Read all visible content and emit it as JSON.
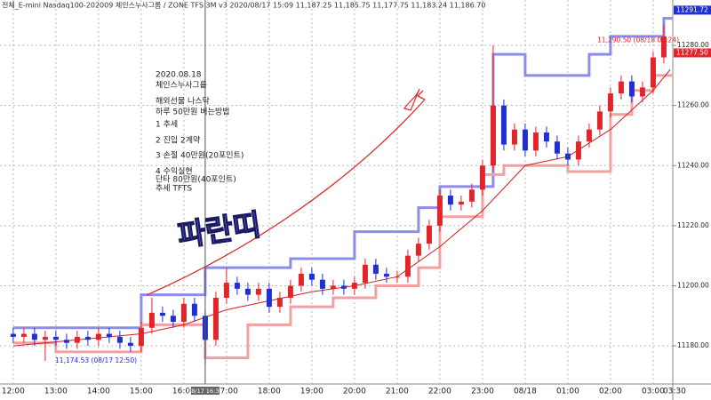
{
  "chart_data": {
    "type": "candlestick",
    "title": "전체_E-mini Nasdaq100-202009 체인스누사그룹 / ZONE TFS 3M v3  2020/08/17 15:09  11,187.25  11,185.75  11,177.75  11,183.24  11,186.70",
    "x": [
      12,
      12.25,
      12.5,
      12.75,
      13,
      13.25,
      13.5,
      13.75,
      14,
      14.25,
      14.5,
      14.75,
      15,
      15.25,
      15.5,
      15.75,
      16,
      16.25,
      16.5,
      16.75,
      17,
      17.25,
      17.5,
      17.75,
      18,
      18.25,
      18.5,
      18.75,
      19,
      19.25,
      19.5,
      19.75,
      20,
      20.25,
      20.5,
      20.75,
      21,
      21.25,
      21.5,
      21.75,
      22,
      22.25,
      22.5,
      22.75,
      23,
      23.25,
      23.5,
      23.75,
      24,
      24.25,
      24.5,
      24.75,
      25,
      25.25,
      25.5,
      25.75,
      26,
      26.25,
      26.5,
      26.75,
      27,
      27.25
    ],
    "open": [
      11184,
      11183,
      11184,
      11182,
      11183,
      11182,
      11181,
      11183,
      11182,
      11184,
      11183,
      11181,
      11180,
      11186,
      11191,
      11190,
      11188,
      11194,
      11190,
      11182,
      11196,
      11201,
      11199,
      11197,
      11199,
      11193,
      11196,
      11200,
      11204,
      11202,
      11199,
      11200,
      11199,
      11201,
      11207,
      11204,
      11203,
      11203,
      11210,
      11214,
      11220,
      11230,
      11227,
      11228,
      11232,
      11240,
      11260,
      11247,
      11252,
      11245,
      11251,
      11248,
      11244,
      11242,
      11248,
      11252,
      11258,
      11264,
      11268,
      11263,
      11266,
      11276
    ],
    "high": [
      11186,
      11186,
      11186,
      11185,
      11185,
      11184,
      11185,
      11185,
      11186,
      11186,
      11185,
      11183,
      11188,
      11196,
      11193,
      11192,
      11196,
      11196,
      11192,
      11198,
      11206,
      11203,
      11201,
      11201,
      11201,
      11198,
      11202,
      11206,
      11206,
      11204,
      11202,
      11202,
      11203,
      11209,
      11209,
      11206,
      11205,
      11212,
      11216,
      11222,
      11232,
      11232,
      11230,
      11234,
      11242,
      11280,
      11262,
      11254,
      11254,
      11253,
      11253,
      11250,
      11246,
      11250,
      11254,
      11260,
      11266,
      11270,
      11270,
      11268,
      11278,
      11287
    ],
    "low": [
      11181,
      11181,
      11180,
      11175,
      11180,
      11179,
      11179,
      11180,
      11180,
      11181,
      11179,
      11178,
      11178,
      11184,
      11188,
      11186,
      11186,
      11188,
      11174,
      11180,
      11194,
      11197,
      11195,
      11195,
      11191,
      11191,
      11194,
      11198,
      11200,
      11197,
      11197,
      11197,
      11197,
      11199,
      11202,
      11201,
      11201,
      11201,
      11208,
      11212,
      11218,
      11225,
      11225,
      11226,
      11230,
      11238,
      11245,
      11245,
      11243,
      11243,
      11246,
      11242,
      11240,
      11240,
      11246,
      11250,
      11256,
      11262,
      11261,
      11261,
      11264,
      11274
    ],
    "close": [
      11183,
      11184,
      11182,
      11183,
      11182,
      11181,
      11183,
      11182,
      11184,
      11183,
      11181,
      11180,
      11186,
      11191,
      11190,
      11188,
      11194,
      11190,
      11182,
      11196,
      11201,
      11199,
      11197,
      11199,
      11193,
      11196,
      11200,
      11204,
      11202,
      11199,
      11200,
      11199,
      11201,
      11207,
      11204,
      11203,
      11203,
      11210,
      11214,
      11220,
      11230,
      11227,
      11228,
      11232,
      11240,
      11260,
      11247,
      11252,
      11245,
      11251,
      11248,
      11244,
      11242,
      11248,
      11252,
      11258,
      11264,
      11268,
      11263,
      11266,
      11276,
      11283
    ],
    "up_color": "#e0262a",
    "down_color": "#1f2fd0",
    "upper_band": {
      "color": "#8c8cf0",
      "x": [
        12,
        15,
        16.5,
        18.5,
        20,
        21.5,
        22,
        23.25,
        24,
        25.5,
        26,
        27.25
      ],
      "values": [
        11186,
        11197,
        11206,
        11209,
        11218,
        11226,
        11233,
        11277,
        11270,
        11277,
        11283,
        11289
      ]
    },
    "lower_band": {
      "color": "#f2a0a0",
      "x": [
        12,
        13,
        15,
        16.5,
        17.5,
        18.5,
        19.5,
        20.5,
        21.5,
        22,
        23,
        23.5,
        25,
        26,
        26.5,
        27
      ],
      "values": [
        11181,
        11178,
        11187,
        11176,
        11187,
        11193,
        11196,
        11200,
        11206,
        11223,
        11237,
        11240,
        11238,
        11257,
        11265,
        11270
      ]
    },
    "ma": {
      "color": "#d02020",
      "x": [
        12,
        15,
        16,
        17,
        18,
        19,
        20,
        21,
        22,
        23,
        24,
        25,
        26,
        27,
        27.4
      ],
      "values": [
        11180,
        11184,
        11187,
        11192,
        11195,
        11198,
        11200,
        11203,
        11213,
        11225,
        11240,
        11243,
        11252,
        11265,
        11272
      ]
    },
    "xlim": [
      11.69,
      27.46
    ],
    "ylim": [
      11167.3,
      11295.1
    ],
    "xticks": [
      {
        "value": 12,
        "label": "12:00"
      },
      {
        "value": 13,
        "label": "13:00"
      },
      {
        "value": 14,
        "label": "14:00"
      },
      {
        "value": 15,
        "label": "15:00"
      },
      {
        "value": 16,
        "label": "16:00"
      },
      {
        "value": 17,
        "label": "17:00"
      },
      {
        "value": 18,
        "label": "18:00"
      },
      {
        "value": 19,
        "label": "19:00"
      },
      {
        "value": 20,
        "label": "20:00"
      },
      {
        "value": 21,
        "label": "21:00"
      },
      {
        "value": 22,
        "label": "22:00"
      },
      {
        "value": 23,
        "label": "23:00"
      },
      {
        "value": 24,
        "label": "08/18"
      },
      {
        "value": 25,
        "label": "01:00"
      },
      {
        "value": 26,
        "label": "02:00"
      },
      {
        "value": 27,
        "label": "03:00"
      },
      {
        "value": 27.5,
        "label": "03:30"
      }
    ],
    "yticks": [
      {
        "value": 11180,
        "label": "11180.00"
      },
      {
        "value": 11200,
        "label": "11200.00"
      },
      {
        "value": 11220,
        "label": "11220.00"
      },
      {
        "value": 11240,
        "label": "11240.00"
      },
      {
        "value": 11260,
        "label": "11260.00"
      },
      {
        "value": 11280,
        "label": "11280.00"
      }
    ],
    "grid": true,
    "price_tags": [
      {
        "value": 11291.72,
        "color": "#1f2fd0"
      },
      {
        "value": {
          "value": 11277.5,
          "label": "11277.50"
        },
        "color": "#e0262a"
      }
    ],
    "high_note": {
      "value": 11290.5,
      "label": "11,290.50 (08/18 03:24)"
    },
    "low_note": {
      "value": 11174.53,
      "label": "11,174.53 (08/17 12:50)"
    },
    "cursor": {
      "x": 16.5,
      "label": "08/17 16:30"
    },
    "big_label": "파란띠",
    "notes": [
      "2020.08.18",
      "체인스누사그룹",
      "해외선물 나스닥",
      "하루 50만원 버는방법",
      "1 추세",
      "2 진입 2계약",
      "3 손절 40만원(20포인트)",
      "4 수익실현",
      "단타 80만원(40포인트)",
      "추세 TFTS"
    ]
  }
}
